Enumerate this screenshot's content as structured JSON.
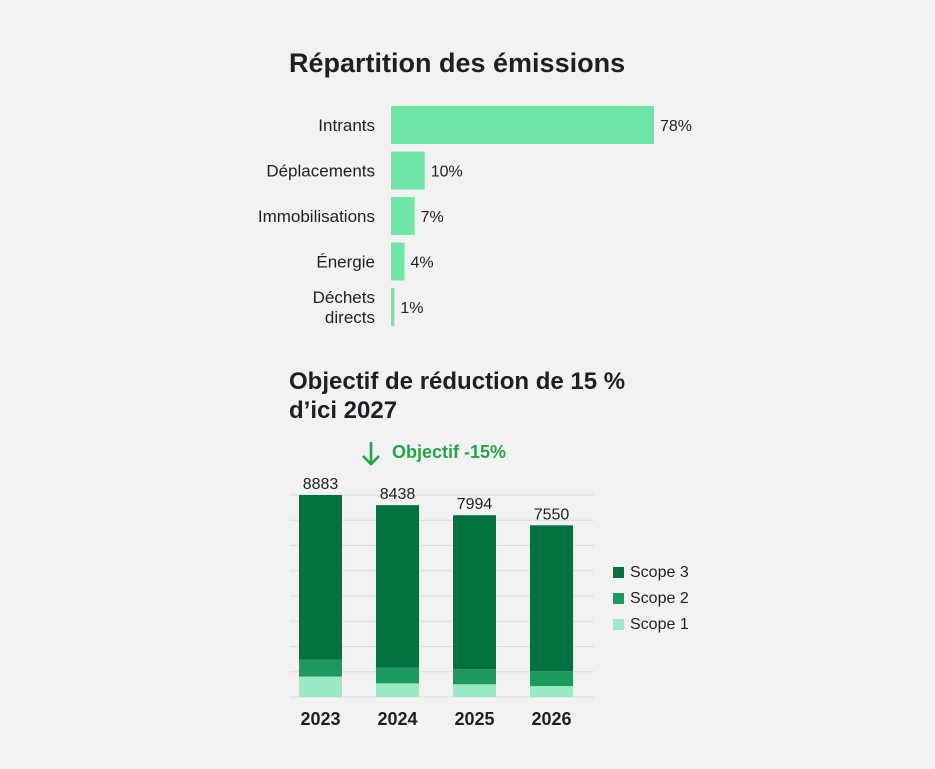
{
  "chart_data": [
    {
      "type": "bar",
      "orientation": "horizontal",
      "title": "Répartition des émissions",
      "categories": [
        "Intrants",
        "Déplacements",
        "Immobilisations",
        "Énergie",
        "Déchets directs"
      ],
      "category_lines": [
        [
          "Intrants"
        ],
        [
          "Déplacements"
        ],
        [
          "Immobilisations"
        ],
        [
          "Énergie"
        ],
        [
          "Déchets",
          "directs"
        ]
      ],
      "values": [
        78,
        10,
        7,
        4,
        1
      ],
      "value_labels": [
        "78%",
        "10%",
        "7%",
        "4%",
        "1%"
      ],
      "xlim": [
        0,
        78
      ],
      "color": "#6ee6a8"
    },
    {
      "type": "bar",
      "stacked": true,
      "title_lines": [
        "Objectif de réduction de 15 %",
        "d’ici 2027"
      ],
      "annotation": "Objectif -15%",
      "categories": [
        "2023",
        "2024",
        "2025",
        "2026"
      ],
      "totals": [
        8883,
        8438,
        7994,
        7550
      ],
      "total_labels": [
        "8883",
        "8438",
        "7994",
        "7550"
      ],
      "series": [
        {
          "name": "Scope 1",
          "values": [
            900,
            600,
            560,
            480
          ],
          "color": "#9be8c4"
        },
        {
          "name": "Scope 2",
          "values": [
            750,
            700,
            660,
            650
          ],
          "color": "#1c9a5e"
        },
        {
          "name": "Scope 3",
          "values": [
            7233,
            7138,
            6774,
            6420
          ],
          "color": "#03703f"
        }
      ],
      "ylim": [
        0,
        8883
      ],
      "grid": true,
      "legend": "right"
    }
  ]
}
